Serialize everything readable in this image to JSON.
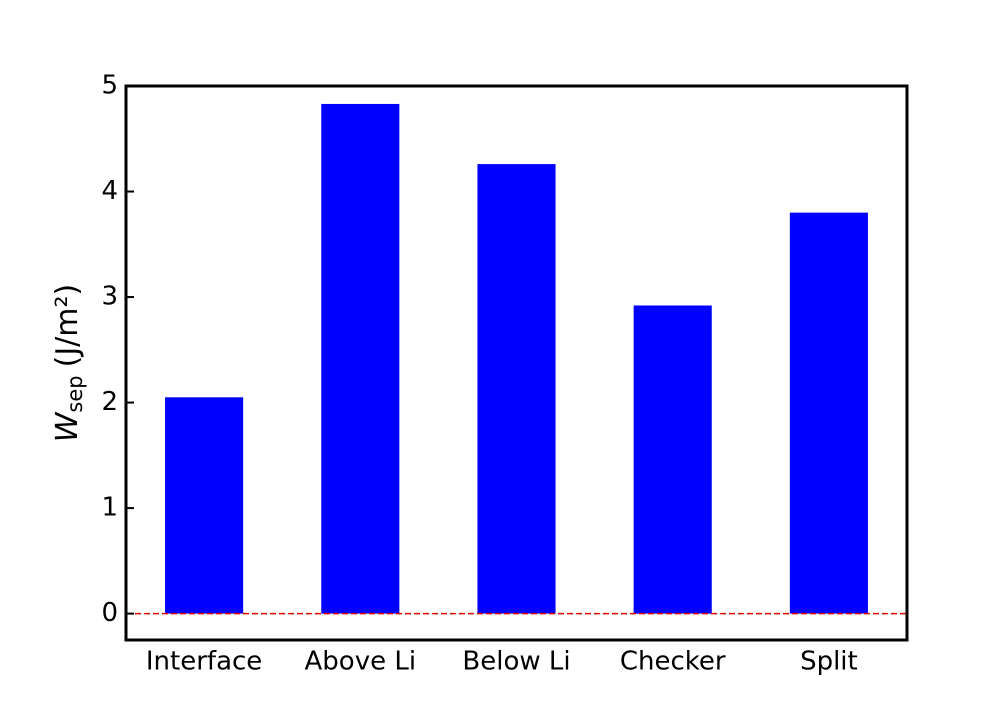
{
  "chart_data": {
    "type": "bar",
    "ylabel": {
      "symbol": "W",
      "subscript": "sep",
      "unit": "(J/m²)"
    },
    "categories": [
      "Interface",
      "Above Li",
      "Below Li",
      "Checker",
      "Split"
    ],
    "values": [
      2.05,
      4.83,
      4.26,
      2.92,
      3.8
    ],
    "color": "#0000ff",
    "ylim": [
      -0.25,
      5
    ],
    "yticks": [
      0,
      1,
      2,
      3,
      4,
      5
    ],
    "grid": false,
    "reference_line": {
      "value": 0,
      "color": "#e00000",
      "style": "dashed"
    }
  }
}
